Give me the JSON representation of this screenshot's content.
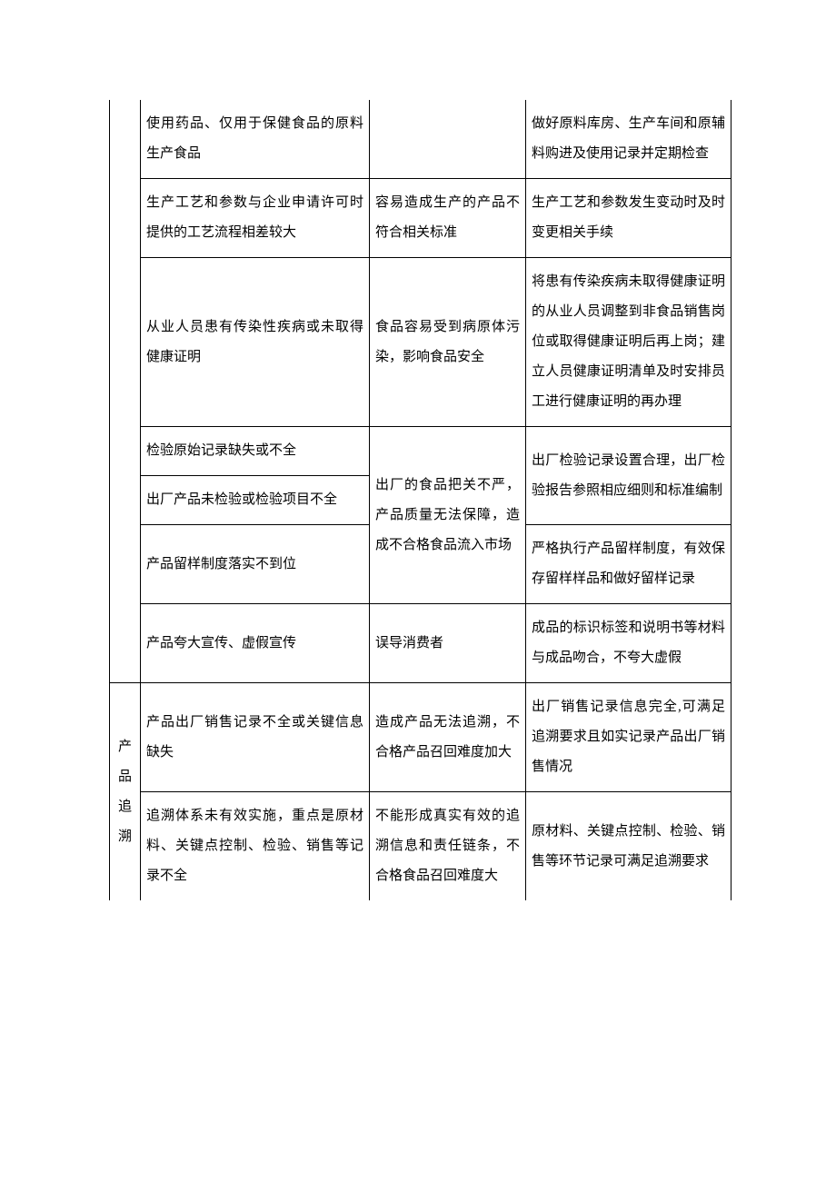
{
  "table": {
    "border_color": "#000000",
    "background_color": "#ffffff",
    "text_color": "#000000",
    "font_size_pt": 11,
    "line_height": 2.2,
    "rows": {
      "r1": {
        "c2": "使用药品、仅用于保健食品的原料生产食品",
        "c3": "",
        "c4": "做好原料库房、生产车间和原辅料购进及使用记录并定期检查"
      },
      "r2": {
        "c2": "生产工艺和参数与企业申请许可时提供的工艺流程相差较大",
        "c3": "容易造成生产的产品不符合相关标准",
        "c4": "生产工艺和参数发生变动时及时变更相关手续"
      },
      "r3": {
        "c2": "从业人员患有传染性疾病或未取得健康证明",
        "c3": "食品容易受到病原体污染，影响食品安全",
        "c4": "将患有传染疾病未取得健康证明的从业人员调整到非食品销售岗位或取得健康证明后再上岗；建立人员健康证明清单及时安排员工进行健康证明的再办理"
      },
      "r4": {
        "c2": "检验原始记录缺失或不全",
        "c3_merged": "出厂的食品把关不严，产品质量无法保障，造成不合格食品流入市场",
        "c4_merged_a": "出厂检验记录设置合理，出厂检验报告参照相应细则和标准编制"
      },
      "r5": {
        "c2": "出厂产品未检验或检验项目不全"
      },
      "r6": {
        "c2": "产品留样制度落实不到位",
        "c4": "严格执行产品留样制度，有效保存留样样品和做好留样记录"
      },
      "r7": {
        "c2": "产品夸大宣传、虚假宣传",
        "c3": "误导消费者",
        "c4": "成品的标识标签和说明书等材料与成品吻合，不夸大虚假"
      },
      "r8": {
        "c1": "产品追溯",
        "c2": "产品出厂销售记录不全或关键信息缺失",
        "c3": "造成产品无法追溯，不合格产品召回难度加大",
        "c4": "出厂销售记录信息完全,可满足追溯要求且如实记录产品出厂销售情况"
      },
      "r9": {
        "c2": "追溯体系未有效实施，重点是原材料、关键点控制、检验、销售等记录不全",
        "c3": "不能形成真实有效的追溯信息和责任链条，不合格食品召回难度大",
        "c4": "原材料、关键点控制、检验、销售等环节记录可满足追溯要求"
      }
    }
  }
}
